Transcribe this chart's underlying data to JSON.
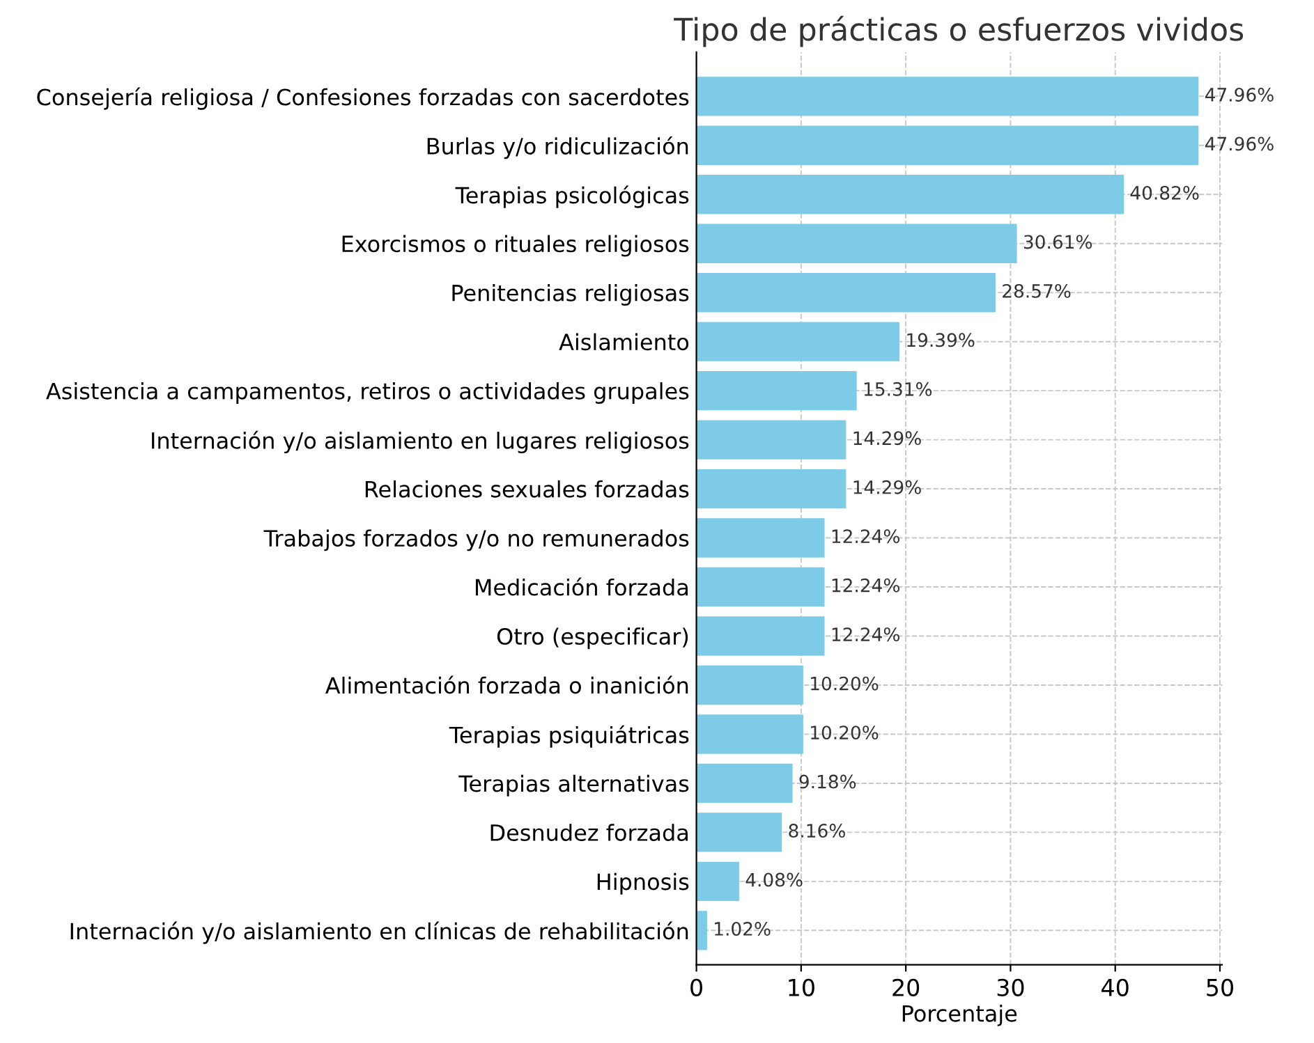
{
  "chart_data": {
    "type": "bar",
    "orientation": "horizontal",
    "title": "Tipo de prácticas o esfuerzos vividos",
    "xlabel": "Porcentaje",
    "categories": [
      "Consejería religiosa / Confesiones forzadas con sacerdotes",
      "Burlas y/o ridiculización",
      "Terapias psicológicas",
      "Exorcismos o rituales religiosos",
      "Penitencias religiosas",
      "Aislamiento",
      "Asistencia a campamentos, retiros o actividades grupales",
      "Internación y/o aislamiento en lugares religiosos",
      "Relaciones sexuales forzadas",
      "Trabajos forzados y/o no remunerados",
      "Medicación forzada",
      "Otro (especificar)",
      "Alimentación forzada o inanición",
      "Terapias psiquiátricas",
      "Terapias alternativas",
      "Desnudez forzada",
      "Hipnosis",
      "Internación y/o aislamiento en clínicas de rehabilitación"
    ],
    "values": [
      47.96,
      47.96,
      40.82,
      30.61,
      28.57,
      19.39,
      15.31,
      14.29,
      14.29,
      12.24,
      12.24,
      12.24,
      10.2,
      10.2,
      9.18,
      8.16,
      4.08,
      1.02
    ],
    "value_labels": [
      "47.96%",
      "47.96%",
      "40.82%",
      "30.61%",
      "28.57%",
      "19.39%",
      "15.31%",
      "14.29%",
      "14.29%",
      "12.24%",
      "12.24%",
      "12.24%",
      "10.20%",
      "10.20%",
      "9.18%",
      "8.16%",
      "4.08%",
      "1.02%"
    ],
    "color": "#7ecbe7",
    "xlim": [
      0,
      50.2
    ],
    "xticks": [
      0,
      10,
      20,
      30,
      40,
      50
    ],
    "grid": true
  }
}
